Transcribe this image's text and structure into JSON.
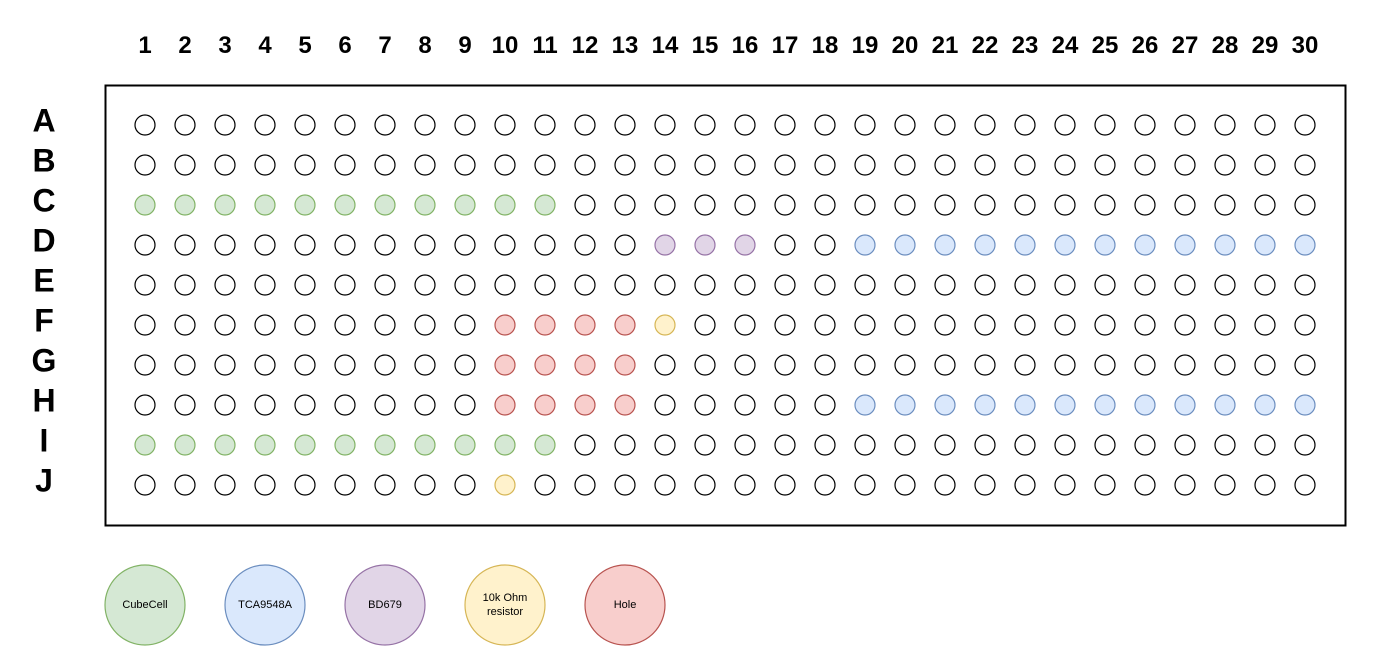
{
  "columns": [
    "1",
    "2",
    "3",
    "4",
    "5",
    "6",
    "7",
    "8",
    "9",
    "10",
    "11",
    "12",
    "13",
    "14",
    "15",
    "16",
    "17",
    "18",
    "19",
    "20",
    "21",
    "22",
    "23",
    "24",
    "25",
    "26",
    "27",
    "28",
    "29",
    "30"
  ],
  "rows": [
    "A",
    "B",
    "C",
    "D",
    "E",
    "F",
    "G",
    "H",
    "I",
    "J"
  ],
  "colors": {
    "empty": {
      "fill": "#ffffff",
      "stroke": "#000000"
    },
    "cubecell": {
      "fill": "#d5e8d4",
      "stroke": "#82b366"
    },
    "tca9548a": {
      "fill": "#dae8fc",
      "stroke": "#6c8ebf"
    },
    "bd679": {
      "fill": "#e1d5e7",
      "stroke": "#9673a6"
    },
    "resistor": {
      "fill": "#fff2cc",
      "stroke": "#d6b656"
    },
    "hole": {
      "fill": "#f8cecc",
      "stroke": "#b85450"
    }
  },
  "placements": [
    {
      "component": "cubecell",
      "row": "C",
      "cols": [
        1,
        2,
        3,
        4,
        5,
        6,
        7,
        8,
        9,
        10,
        11
      ]
    },
    {
      "component": "cubecell",
      "row": "I",
      "cols": [
        1,
        2,
        3,
        4,
        5,
        6,
        7,
        8,
        9,
        10,
        11
      ]
    },
    {
      "component": "bd679",
      "row": "D",
      "cols": [
        14,
        15,
        16
      ]
    },
    {
      "component": "tca9548a",
      "row": "D",
      "cols": [
        19,
        20,
        21,
        22,
        23,
        24,
        25,
        26,
        27,
        28,
        29,
        30
      ]
    },
    {
      "component": "tca9548a",
      "row": "H",
      "cols": [
        19,
        20,
        21,
        22,
        23,
        24,
        25,
        26,
        27,
        28,
        29,
        30
      ]
    },
    {
      "component": "hole",
      "row": "F",
      "cols": [
        10,
        11,
        12,
        13
      ]
    },
    {
      "component": "hole",
      "row": "G",
      "cols": [
        10,
        11,
        12,
        13
      ]
    },
    {
      "component": "hole",
      "row": "H",
      "cols": [
        10,
        11,
        12,
        13
      ]
    },
    {
      "component": "resistor",
      "row": "F",
      "cols": [
        14
      ]
    },
    {
      "component": "resistor",
      "row": "J",
      "cols": [
        10
      ]
    }
  ],
  "legend": [
    {
      "key": "cubecell",
      "lines": [
        "CubeCell"
      ]
    },
    {
      "key": "tca9548a",
      "lines": [
        "TCA9548A"
      ]
    },
    {
      "key": "bd679",
      "lines": [
        "BD679"
      ]
    },
    {
      "key": "resistor",
      "lines": [
        "10k Ohm",
        "resistor"
      ]
    },
    {
      "key": "hole",
      "lines": [
        "Hole"
      ]
    }
  ]
}
